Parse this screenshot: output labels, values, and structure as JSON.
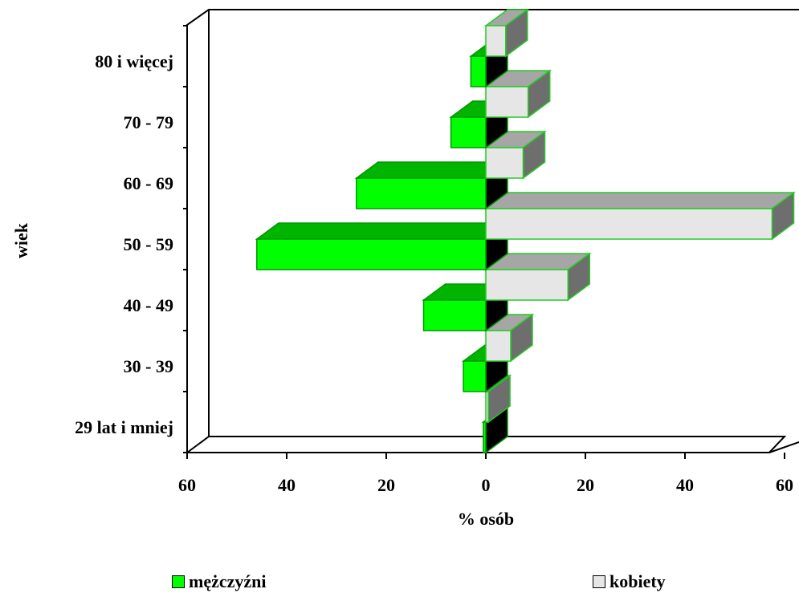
{
  "chart_data": {
    "type": "bar",
    "orientation": "horizontal",
    "style": "3d-population-pyramid",
    "categories": [
      "29 lat i mniej",
      "30 - 39",
      "40 - 49",
      "50 - 59",
      "60 - 69",
      "70 - 79",
      "80 i więcej"
    ],
    "series": [
      {
        "name": "mężczyźni",
        "color": "#00ff00",
        "values": [
          0.5,
          4.5,
          12.5,
          46,
          26,
          7,
          3
        ]
      },
      {
        "name": "kobiety",
        "color": "#e6e6e6",
        "values": [
          0.5,
          5,
          16.5,
          57.5,
          7.5,
          8.5,
          4
        ]
      }
    ],
    "x_ticks": [
      "60",
      "40",
      "20",
      "0",
      "20",
      "40",
      "60"
    ],
    "xlim": [
      -60,
      60
    ],
    "xlabel": "% osób",
    "ylabel": "wiek",
    "title": "",
    "grid": false,
    "legend_position": "bottom"
  }
}
